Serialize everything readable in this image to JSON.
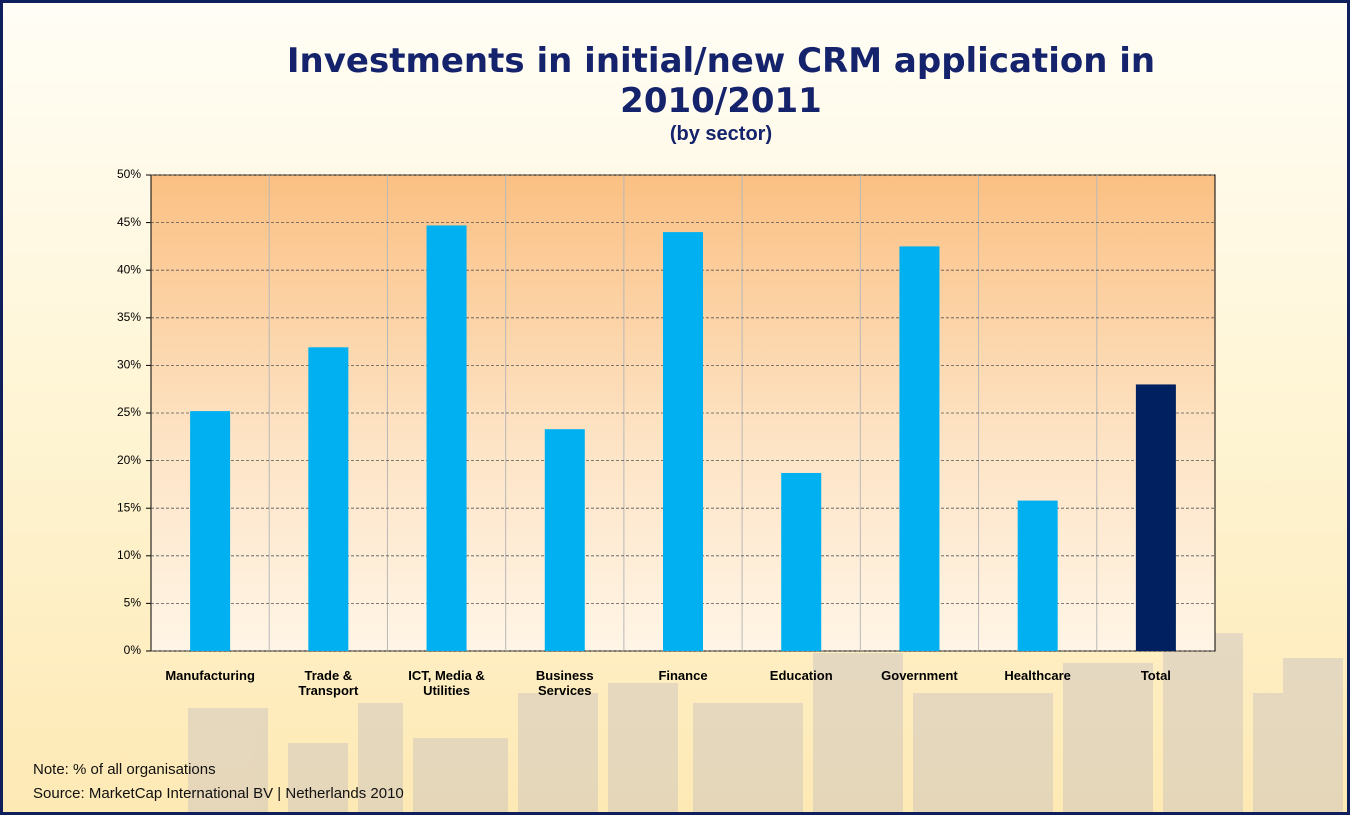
{
  "chart_data": {
    "type": "bar",
    "title": "Investments in initial/new CRM application in 2010/2011",
    "subtitle": "(by sector)",
    "categories": [
      "Manufacturing",
      "Trade & Transport",
      "ICT, Media & Utilities",
      "Business Services",
      "Finance",
      "Education",
      "Government",
      "Healthcare",
      "Total"
    ],
    "values": [
      25.2,
      31.9,
      44.7,
      23.3,
      44.0,
      18.7,
      42.5,
      15.8,
      28.0
    ],
    "colors": [
      "#00b0f0",
      "#00b0f0",
      "#00b0f0",
      "#00b0f0",
      "#00b0f0",
      "#00b0f0",
      "#00b0f0",
      "#00b0f0",
      "#002060"
    ],
    "ylim": [
      0,
      50
    ],
    "yticks": [
      {
        "value": 0,
        "label": "0%"
      },
      {
        "value": 5,
        "label": "5%"
      },
      {
        "value": 10,
        "label": "10%"
      },
      {
        "value": 15,
        "label": "15%"
      },
      {
        "value": 20,
        "label": "20%"
      },
      {
        "value": 25,
        "label": "25%"
      },
      {
        "value": 30,
        "label": "30%"
      },
      {
        "value": 35,
        "label": "35%"
      },
      {
        "value": 40,
        "label": "40%"
      },
      {
        "value": 45,
        "label": "45%"
      },
      {
        "value": 50,
        "label": "50%"
      }
    ],
    "grid": true,
    "notes": [
      "Note: % of all organisations",
      "Source: MarketCap International BV | Netherlands 2010"
    ]
  }
}
